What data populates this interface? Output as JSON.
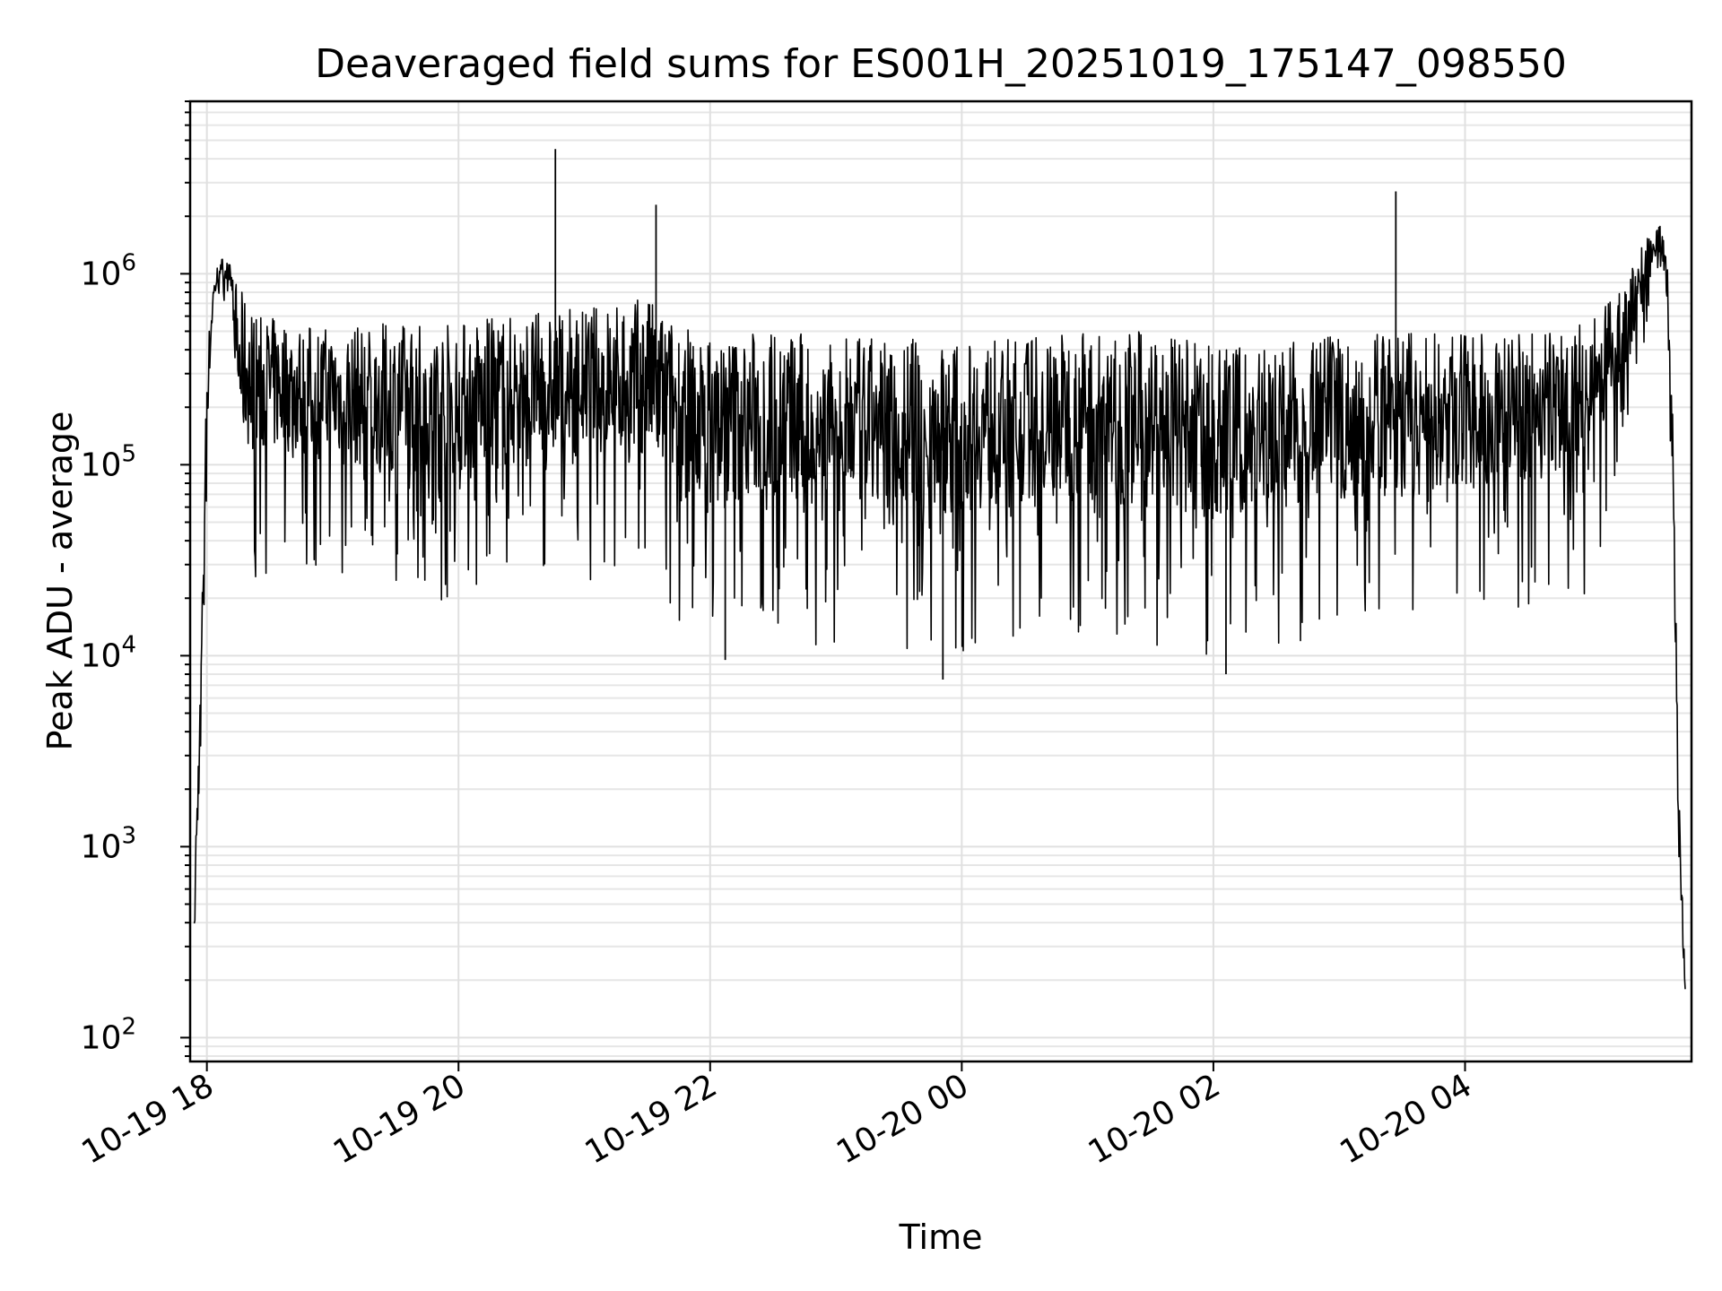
{
  "chart_data": {
    "type": "line",
    "title": "Deaveraged field sums for ES001H_20251019_175147_098550",
    "xlabel": "Time",
    "ylabel": "Peak ADU - average",
    "yscale": "log",
    "ylim": [
      75,
      8000000
    ],
    "xlim_hours": [
      -0.133,
      11.8
    ],
    "x_reference": "2025-10-19 18:00",
    "grid": true,
    "line_color": "#000000",
    "x_ticks": [
      {
        "hour": 0,
        "label": "10-19 18"
      },
      {
        "hour": 2,
        "label": "10-19 20"
      },
      {
        "hour": 4,
        "label": "10-19 22"
      },
      {
        "hour": 6,
        "label": "10-20 00"
      },
      {
        "hour": 8,
        "label": "10-20 02"
      },
      {
        "hour": 10,
        "label": "10-20 04"
      }
    ],
    "y_ticks": [
      {
        "value": 100,
        "base": "10",
        "exp": "2"
      },
      {
        "value": 1000,
        "base": "10",
        "exp": "3"
      },
      {
        "value": 10000,
        "base": "10",
        "exp": "4"
      },
      {
        "value": 100000,
        "base": "10",
        "exp": "5"
      },
      {
        "value": 1000000,
        "base": "10",
        "exp": "6"
      }
    ],
    "series": [
      {
        "name": "peak_minus_average",
        "envelope": {
          "hours": [
            -0.1,
            -0.05,
            0.0,
            0.05,
            0.1,
            0.15,
            0.2,
            0.25,
            0.4,
            0.6,
            1.0,
            1.5,
            2.0,
            2.5,
            3.0,
            3.5,
            3.7,
            4.0,
            4.5,
            5.0,
            5.5,
            6.0,
            6.5,
            7.0,
            7.5,
            8.0,
            8.5,
            9.0,
            9.5,
            10.0,
            10.5,
            11.0,
            11.2,
            11.4,
            11.5,
            11.6,
            11.65,
            11.7,
            11.75
          ],
          "upper": [
            800,
            8000,
            400000,
            900000,
            1250000,
            1200000,
            1100000,
            900000,
            650000,
            600000,
            550000,
            580000,
            600000,
            650000,
            700000,
            800000,
            600000,
            500000,
            550000,
            480000,
            500000,
            450000,
            500000,
            550000,
            520000,
            450000,
            450000,
            500000,
            550000,
            500000,
            520000,
            600000,
            800000,
            1400000,
            2000000,
            1800000,
            200000,
            2000,
            200
          ],
          "lower": [
            100,
            2000,
            60000,
            500000,
            800000,
            700000,
            600000,
            30000,
            25000,
            30000,
            25000,
            20000,
            18000,
            20000,
            25000,
            20000,
            15000,
            10000,
            12000,
            11000,
            9000,
            10000,
            12000,
            11000,
            10000,
            8000,
            11000,
            12000,
            12000,
            15000,
            18000,
            20000,
            80000,
            300000,
            700000,
            500000,
            30000,
            500,
            100
          ]
        },
        "spikes": [
          {
            "hour": 2.77,
            "value": 4500000
          },
          {
            "hour": 3.57,
            "value": 2300000
          },
          {
            "hour": 9.45,
            "value": 2700000
          },
          {
            "hour": 5.85,
            "value": 7500
          },
          {
            "hour": 8.1,
            "value": 8000
          },
          {
            "hour": 4.12,
            "value": 9500
          }
        ]
      }
    ]
  }
}
